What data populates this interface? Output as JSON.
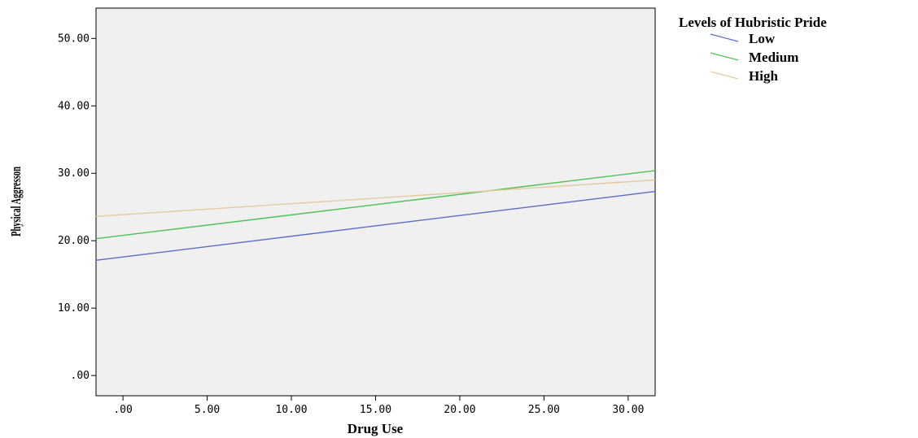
{
  "chart_data": {
    "type": "line",
    "xlabel": "Drug Use",
    "ylabel": "Physical Aggresson",
    "xlim": [
      -1.6,
      31.6
    ],
    "ylim": [
      -3.0,
      54.5
    ],
    "x_ticks": [
      ".00",
      "5.00",
      "10.00",
      "15.00",
      "20.00",
      "25.00",
      "30.00"
    ],
    "x_tick_values": [
      0,
      5,
      10,
      15,
      20,
      25,
      30
    ],
    "y_ticks": [
      ".00",
      "10.00",
      "20.00",
      "30.00",
      "40.00",
      "50.00"
    ],
    "y_tick_values": [
      0,
      10,
      20,
      30,
      40,
      50
    ],
    "legend": {
      "title": "Levels of Hubristic Pride",
      "placement": "right-top"
    },
    "series": [
      {
        "name": "Low",
        "color": "#5a6fc4",
        "x": [
          -1.6,
          31.6
        ],
        "y": [
          17.1,
          27.3
        ]
      },
      {
        "name": "Medium",
        "color": "#4fc05a",
        "x": [
          -1.6,
          31.6
        ],
        "y": [
          20.3,
          30.4
        ]
      },
      {
        "name": "High",
        "color": "#e7c9a0",
        "x": [
          -1.6,
          31.6
        ],
        "y": [
          23.6,
          29.0
        ]
      }
    ],
    "plot_background": "#f0f0f0",
    "grid": false
  }
}
